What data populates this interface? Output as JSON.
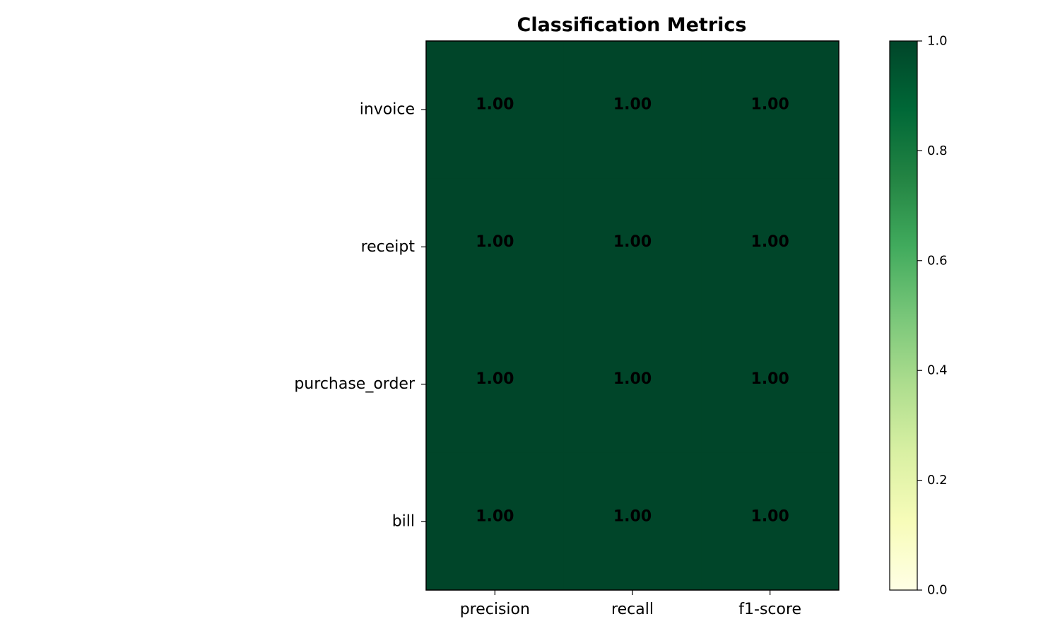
{
  "chart_data": {
    "type": "heatmap",
    "title": "Classification Metrics",
    "columns": [
      "precision",
      "recall",
      "f1-score"
    ],
    "rows": [
      "invoice",
      "receipt",
      "purchase_order",
      "bill"
    ],
    "values": [
      [
        1.0,
        1.0,
        1.0
      ],
      [
        1.0,
        1.0,
        1.0
      ],
      [
        1.0,
        1.0,
        1.0
      ],
      [
        1.0,
        1.0,
        1.0
      ]
    ],
    "cell_labels": [
      [
        "1.00",
        "1.00",
        "1.00"
      ],
      [
        "1.00",
        "1.00",
        "1.00"
      ],
      [
        "1.00",
        "1.00",
        "1.00"
      ],
      [
        "1.00",
        "1.00",
        "1.00"
      ]
    ],
    "colorbar": {
      "range": [
        0.0,
        1.0
      ],
      "ticks": [
        "0.0",
        "0.2",
        "0.4",
        "0.6",
        "0.8",
        "1.0"
      ],
      "colormap": "YlGn",
      "colors": [
        "#ffffe5",
        "#f7fcb9",
        "#d9f0a3",
        "#addd8e",
        "#78c679",
        "#41ab5d",
        "#238443",
        "#006837",
        "#004529"
      ]
    }
  }
}
